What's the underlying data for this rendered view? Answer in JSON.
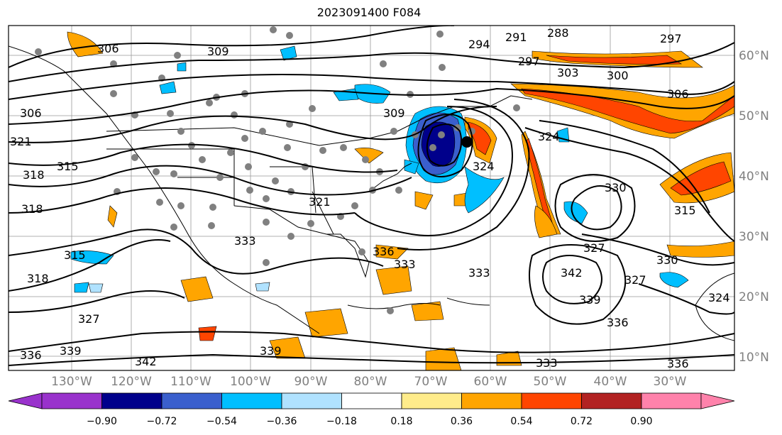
{
  "title": "2023091400 F084",
  "map": {
    "lon_labels": [
      "130°W",
      "120°W",
      "110°W",
      "100°W",
      "90°W",
      "80°W",
      "70°W",
      "60°W",
      "50°W",
      "40°W",
      "30°W"
    ],
    "lat_labels": [
      "60°N",
      "50°N",
      "40°N",
      "30°N",
      "20°N",
      "10°N"
    ],
    "contour_labels": [
      "306",
      "309",
      "291",
      "288",
      "294",
      "297",
      "297",
      "303",
      "300",
      "306",
      "306",
      "321",
      "318",
      "318",
      "309",
      "324",
      "324",
      "315",
      "321",
      "330",
      "315",
      "318",
      "315",
      "333",
      "336",
      "333",
      "327",
      "330",
      "333",
      "336",
      "339",
      "327",
      "342",
      "339",
      "336",
      "339",
      "342",
      "327",
      "324",
      "336",
      "333"
    ]
  },
  "colorbar": {
    "tick_labels": [
      "−0.90",
      "−0.72",
      "−0.54",
      "−0.36",
      "−0.18",
      "0.18",
      "0.36",
      "0.54",
      "0.72",
      "0.90"
    ],
    "colors": [
      "#9932cc",
      "#00008b",
      "#3a5fcd",
      "#00bfff",
      "#b0e2ff",
      "#ffffff",
      "#ffec8b",
      "#ffa500",
      "#ff4500",
      "#b22222",
      "#ff82ab"
    ]
  }
}
